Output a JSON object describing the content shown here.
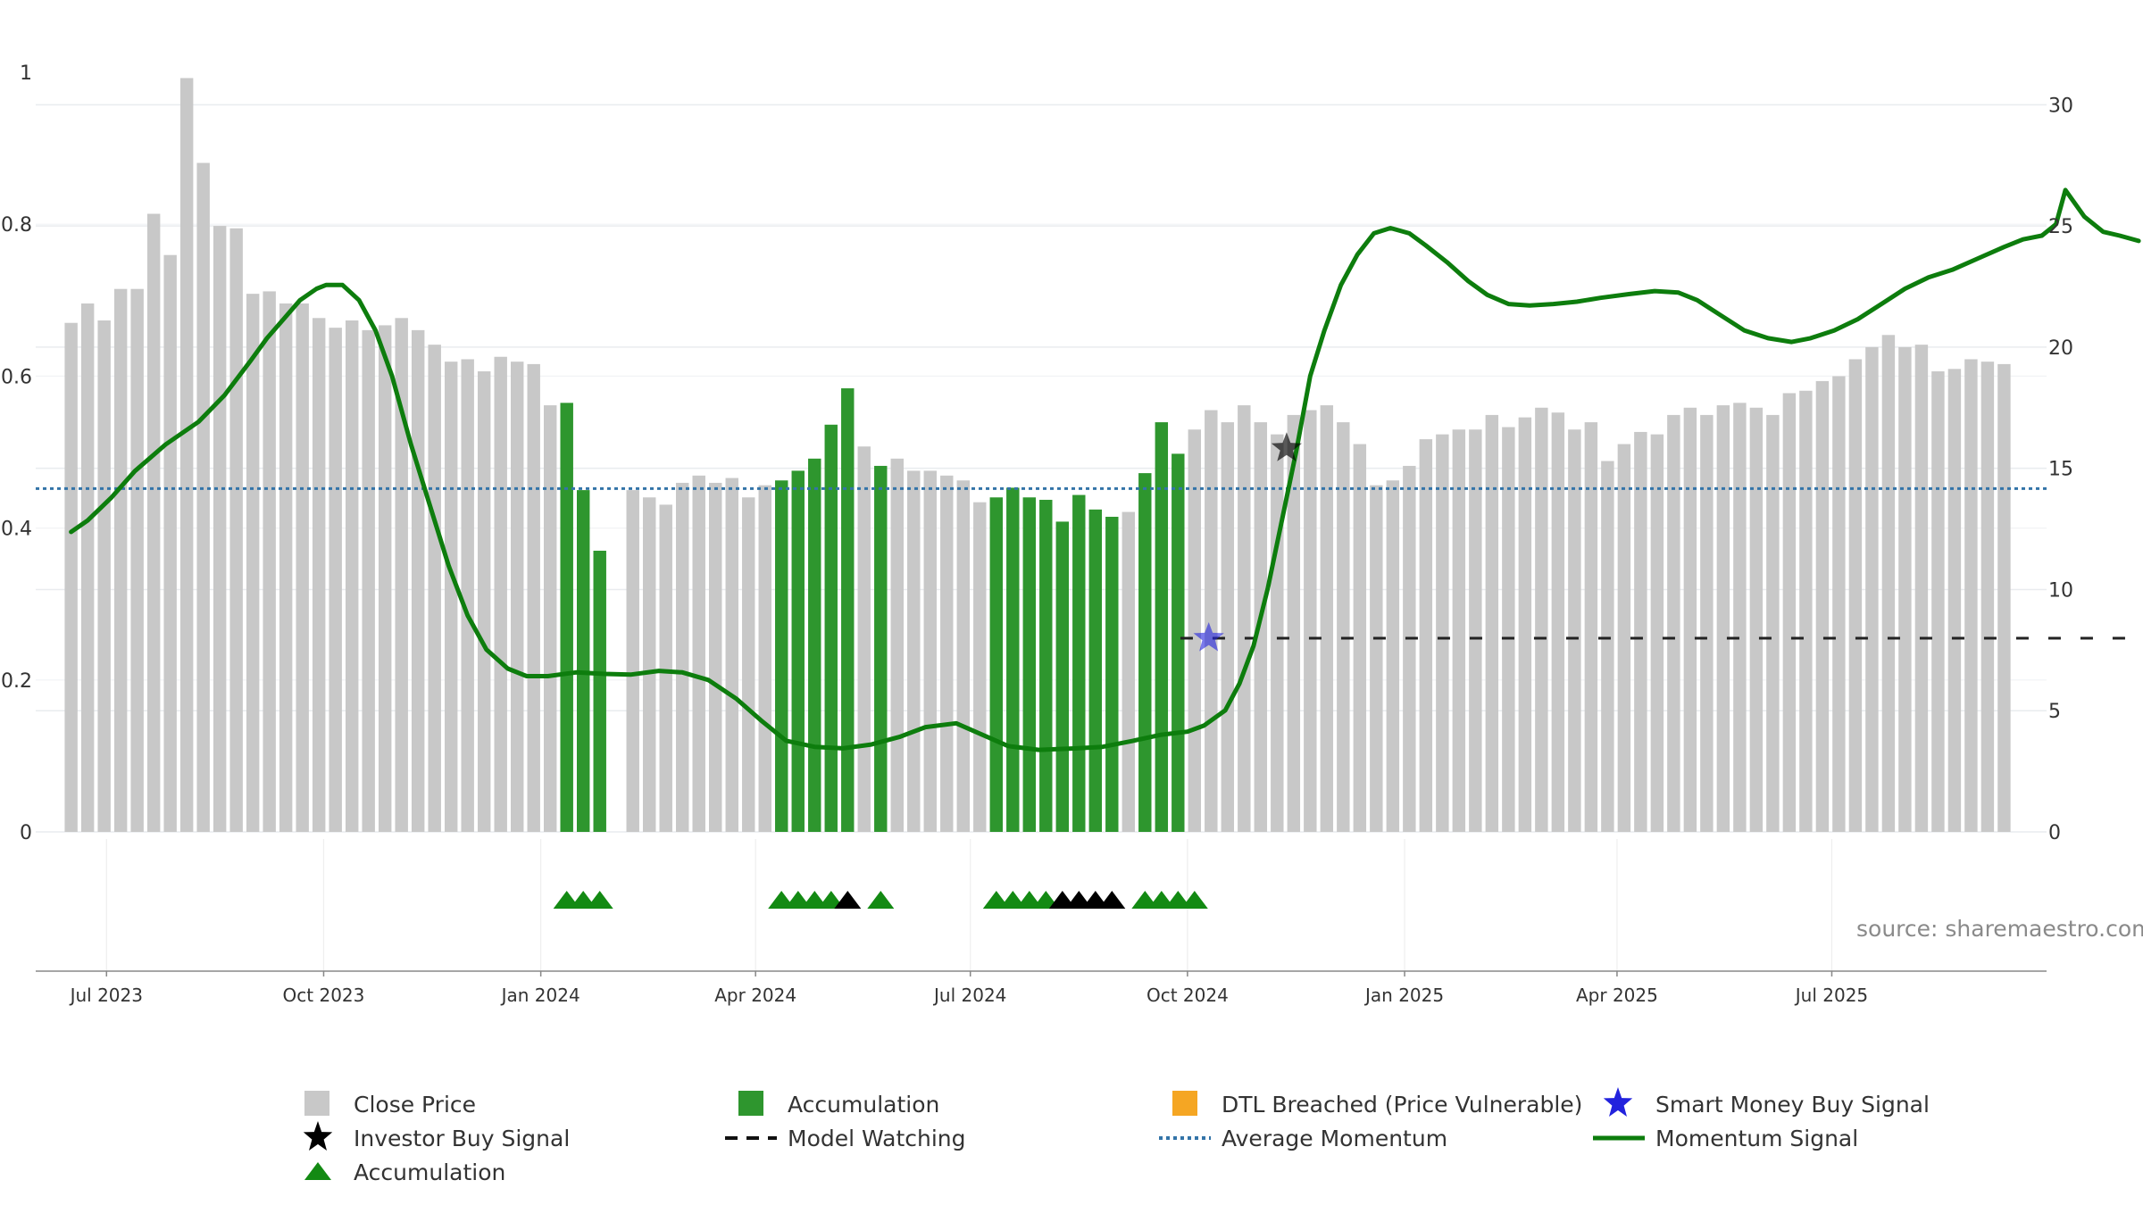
{
  "chart_data": {
    "type": "bar",
    "title": "",
    "source_text": "source: sharemaestro.com",
    "y_left": {
      "range": [
        0,
        1
      ],
      "ticks": [
        0,
        0.2,
        0.4,
        0.6,
        0.8,
        1
      ],
      "tick_labels": [
        "0",
        "0.2",
        "0.4",
        "0.6",
        "0.8",
        "1"
      ]
    },
    "y_right": {
      "range": [
        0,
        32.7
      ],
      "ticks": [
        0,
        5,
        10,
        15,
        20,
        25,
        30
      ],
      "tick_labels": [
        "0",
        "5",
        "10",
        "15",
        "20",
        "25",
        "30"
      ]
    },
    "x_axis": {
      "type": "date",
      "range": [
        "2023-06-01",
        "2025-09-30"
      ],
      "ticks": [
        {
          "date": "2023-07-01",
          "label": "Jul 2023"
        },
        {
          "date": "2023-10-01",
          "label": "Oct 2023"
        },
        {
          "date": "2024-01-01",
          "label": "Jan 2024"
        },
        {
          "date": "2024-04-01",
          "label": "Apr 2024"
        },
        {
          "date": "2024-07-01",
          "label": "Jul 2024"
        },
        {
          "date": "2024-10-01",
          "label": "Oct 2024"
        },
        {
          "date": "2025-01-01",
          "label": "Jan 2025"
        },
        {
          "date": "2025-04-01",
          "label": "Apr 2025"
        },
        {
          "date": "2025-07-01",
          "label": "Jul 2025"
        }
      ]
    },
    "close_price_weekly": {
      "start_date": "2023-06-16",
      "interval_days": 7,
      "values": [
        21.0,
        21.8,
        21.1,
        22.4,
        22.4,
        25.5,
        23.8,
        31.1,
        27.6,
        25.0,
        24.9,
        22.2,
        22.3,
        21.8,
        21.8,
        21.2,
        20.8,
        21.1,
        20.7,
        20.9,
        21.2,
        20.7,
        20.1,
        19.4,
        19.5,
        19.0,
        19.6,
        19.4,
        19.3,
        17.6,
        17.7,
        14.1,
        11.6,
        0,
        14.1,
        13.8,
        13.5,
        14.4,
        14.7,
        14.4,
        14.6,
        13.8,
        14.3,
        14.5,
        14.9,
        15.4,
        16.8,
        18.3,
        15.9,
        15.1,
        15.4,
        14.9,
        14.9,
        14.7,
        14.5,
        13.6,
        13.8,
        14.2,
        13.8,
        13.7,
        12.8,
        13.9,
        13.3,
        13.0,
        13.2,
        14.8,
        16.9,
        15.6,
        16.6,
        17.4,
        16.9,
        17.6,
        16.9,
        16.4,
        17.2,
        17.4,
        17.6,
        16.9,
        16.0,
        14.3,
        14.5,
        15.1,
        16.2,
        16.4,
        16.6,
        16.6,
        17.2,
        16.7,
        17.1,
        17.5,
        17.3,
        16.6,
        16.9,
        15.3,
        16.0,
        16.5,
        16.4,
        17.2,
        17.5,
        17.2,
        17.6,
        17.7,
        17.5,
        17.2,
        18.1,
        18.2,
        18.6,
        18.8,
        19.5,
        20.0,
        20.5,
        20.0,
        20.1,
        19.0,
        19.1,
        19.5,
        19.4,
        19.3
      ]
    },
    "accumulation_bar_indices": [
      30,
      31,
      32,
      43,
      44,
      45,
      46,
      47,
      49,
      56,
      57,
      58,
      59,
      60,
      61,
      62,
      63,
      65,
      66,
      67
    ],
    "accumulation_markers": {
      "green_indices": [
        30,
        31,
        32,
        43,
        44,
        45,
        46,
        49,
        56,
        57,
        58,
        59,
        65,
        66,
        67,
        68
      ],
      "black_indices": [
        47,
        60,
        61,
        62,
        63
      ]
    },
    "momentum_signal": {
      "points": [
        [
          "2023-06-16",
          0.395
        ],
        [
          "2023-06-23",
          0.41
        ],
        [
          "2023-07-03",
          0.44
        ],
        [
          "2023-07-13",
          0.475
        ],
        [
          "2023-07-26",
          0.51
        ],
        [
          "2023-08-09",
          0.54
        ],
        [
          "2023-08-20",
          0.575
        ],
        [
          "2023-08-31",
          0.62
        ],
        [
          "2023-09-07",
          0.65
        ],
        [
          "2023-09-14",
          0.675
        ],
        [
          "2023-09-21",
          0.7
        ],
        [
          "2023-09-28",
          0.715
        ],
        [
          "2023-10-02",
          0.72
        ],
        [
          "2023-10-09",
          0.72
        ],
        [
          "2023-10-16",
          0.7
        ],
        [
          "2023-10-23",
          0.66
        ],
        [
          "2023-10-30",
          0.6
        ],
        [
          "2023-11-07",
          0.51
        ],
        [
          "2023-11-15",
          0.43
        ],
        [
          "2023-11-23",
          0.35
        ],
        [
          "2023-12-01",
          0.285
        ],
        [
          "2023-12-09",
          0.24
        ],
        [
          "2023-12-18",
          0.215
        ],
        [
          "2023-12-26",
          0.205
        ],
        [
          "2024-01-04",
          0.205
        ],
        [
          "2024-01-16",
          0.21
        ],
        [
          "2024-01-28",
          0.208
        ],
        [
          "2024-02-08",
          0.207
        ],
        [
          "2024-02-20",
          0.212
        ],
        [
          "2024-03-01",
          0.21
        ],
        [
          "2024-03-12",
          0.2
        ],
        [
          "2024-03-24",
          0.175
        ],
        [
          "2024-04-04",
          0.145
        ],
        [
          "2024-04-14",
          0.12
        ],
        [
          "2024-04-26",
          0.112
        ],
        [
          "2024-05-08",
          0.11
        ],
        [
          "2024-05-20",
          0.115
        ],
        [
          "2024-06-01",
          0.125
        ],
        [
          "2024-06-12",
          0.138
        ],
        [
          "2024-06-25",
          0.143
        ],
        [
          "2024-07-06",
          0.128
        ],
        [
          "2024-07-17",
          0.113
        ],
        [
          "2024-07-30",
          0.108
        ],
        [
          "2024-08-15",
          0.11
        ],
        [
          "2024-08-26",
          0.112
        ],
        [
          "2024-09-08",
          0.12
        ],
        [
          "2024-09-20",
          0.128
        ],
        [
          "2024-10-01",
          0.132
        ],
        [
          "2024-10-08",
          0.14
        ],
        [
          "2024-10-17",
          0.16
        ],
        [
          "2024-10-23",
          0.195
        ],
        [
          "2024-10-29",
          0.245
        ],
        [
          "2024-11-04",
          0.32
        ],
        [
          "2024-11-10",
          0.41
        ],
        [
          "2024-11-16",
          0.5
        ],
        [
          "2024-11-22",
          0.6
        ],
        [
          "2024-11-28",
          0.66
        ],
        [
          "2024-12-05",
          0.72
        ],
        [
          "2024-12-12",
          0.76
        ],
        [
          "2024-12-19",
          0.788
        ],
        [
          "2024-12-26",
          0.795
        ],
        [
          "2025-01-03",
          0.788
        ],
        [
          "2025-01-10",
          0.772
        ],
        [
          "2025-01-19",
          0.75
        ],
        [
          "2025-01-28",
          0.725
        ],
        [
          "2025-02-05",
          0.707
        ],
        [
          "2025-02-14",
          0.695
        ],
        [
          "2025-02-23",
          0.693
        ],
        [
          "2025-03-05",
          0.695
        ],
        [
          "2025-03-15",
          0.698
        ],
        [
          "2025-03-25",
          0.703
        ],
        [
          "2025-04-06",
          0.708
        ],
        [
          "2025-04-17",
          0.712
        ],
        [
          "2025-04-27",
          0.71
        ],
        [
          "2025-05-05",
          0.7
        ],
        [
          "2025-05-15",
          0.68
        ],
        [
          "2025-05-25",
          0.66
        ],
        [
          "2025-06-04",
          0.65
        ],
        [
          "2025-06-14",
          0.645
        ],
        [
          "2025-06-22",
          0.65
        ],
        [
          "2025-07-02",
          0.66
        ],
        [
          "2025-07-12",
          0.675
        ],
        [
          "2025-07-22",
          0.695
        ],
        [
          "2025-08-01",
          0.715
        ],
        [
          "2025-08-11",
          0.73
        ],
        [
          "2025-08-21",
          0.74
        ],
        [
          "2025-09-01",
          0.755
        ],
        [
          "2025-09-12",
          0.77
        ],
        [
          "2025-09-20",
          0.78
        ],
        [
          "2025-09-28",
          0.785
        ],
        [
          "2025-10-04",
          0.8
        ],
        [
          "2025-10-08",
          0.845
        ],
        [
          "2025-10-16",
          0.81
        ],
        [
          "2025-10-24",
          0.79
        ],
        [
          "2025-10-31",
          0.785
        ],
        [
          "2025-11-08",
          0.778
        ]
      ]
    },
    "average_momentum": 0.452,
    "model_watching": {
      "start": "2024-09-28",
      "end": "2025-11-09",
      "value": 0.255
    },
    "smart_money_buy_signal": {
      "date": "2024-10-10",
      "value": 0.255
    },
    "investor_buy_signal": {
      "date": "2024-11-12",
      "value": 0.505
    },
    "colors": {
      "close_price": "#c8c8c8",
      "accumulation": "#2e962e",
      "accumulation_marker": "#138a13",
      "black_marker": "#000000",
      "momentum": "#0d7d0d",
      "average_momentum": "#3374a8",
      "model_watching": "#222222",
      "smart_money": "#2222dd",
      "dtl": "#f5a623",
      "grid": "#e9ecef"
    },
    "legend": {
      "placement": "bottom",
      "items": [
        {
          "label": "Close Price",
          "marker": "grey-square"
        },
        {
          "label": "Accumulation",
          "marker": "green-square"
        },
        {
          "label": "DTL Breached (Price Vulnerable)",
          "marker": "orange-square"
        },
        {
          "label": "Smart Money Buy Signal",
          "marker": "blue-star"
        },
        {
          "label": "Investor Buy Signal",
          "marker": "black-star"
        },
        {
          "label": "Model Watching",
          "marker": "black-dashed-line"
        },
        {
          "label": "Average Momentum",
          "marker": "blue-dotted-line"
        },
        {
          "label": "Momentum Signal",
          "marker": "green-line"
        },
        {
          "label": "Accumulation",
          "marker": "green-triangle"
        }
      ]
    }
  }
}
